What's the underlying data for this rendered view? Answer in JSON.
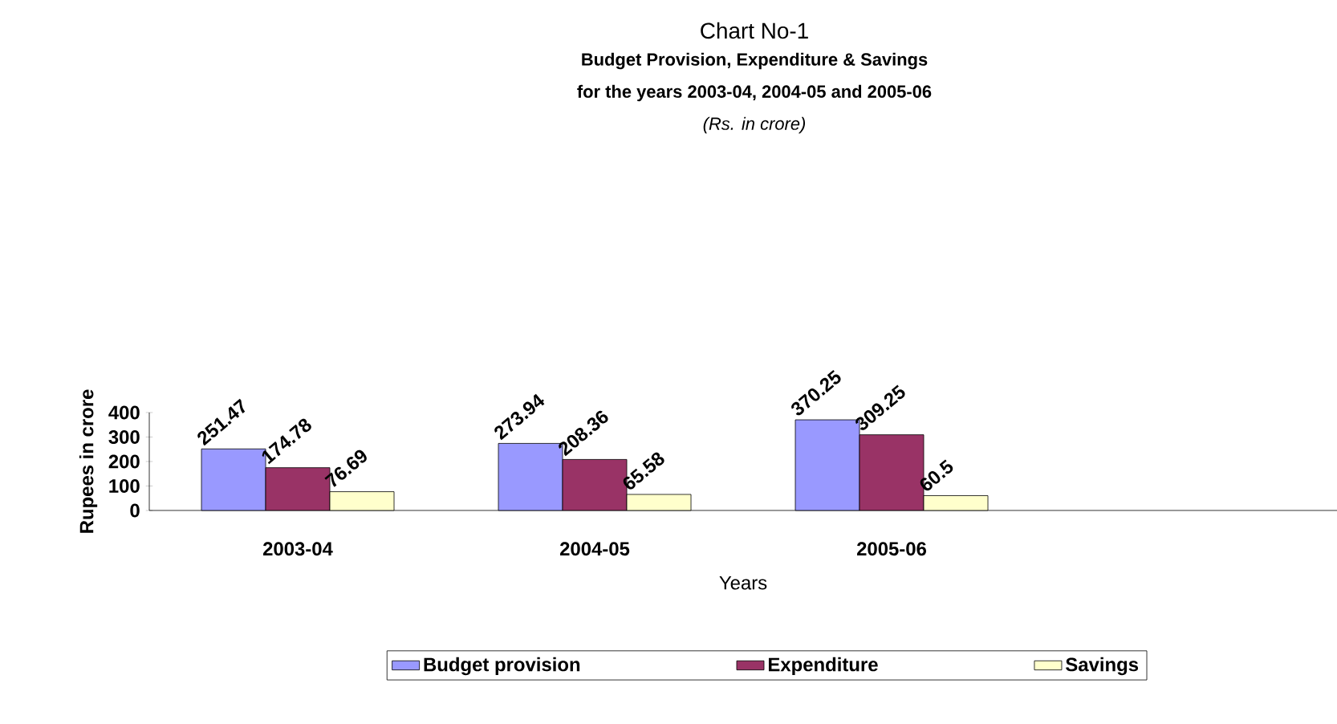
{
  "chart_data": {
    "type": "bar",
    "title": "Chart No-1",
    "subtitle": "Budget Provision, Expenditure & Savings",
    "annotations": [
      "for the years 2003-04, 2004-05 and 2005-06",
      "(Rs. in crore)"
    ],
    "xlabel": "Years",
    "ylabel": "Rupees in crore",
    "categories": [
      "2003-04",
      "2004-05",
      "2005-06",
      null
    ],
    "series": [
      {
        "name": "Budget provision",
        "color": "#9999ff",
        "values": [
          251.47,
          273.94,
          370.25,
          null
        ]
      },
      {
        "name": "Expenditure",
        "color": "#993366",
        "values": [
          174.78,
          208.36,
          309.25,
          null
        ]
      },
      {
        "name": "Savings",
        "color": "#ffffcc",
        "values": [
          76.69,
          65.58,
          60.5,
          null
        ]
      }
    ],
    "ylim": [
      0,
      400
    ],
    "yticks": [
      0,
      100,
      200,
      300,
      400
    ],
    "data_labels": true,
    "legend": "bottom"
  }
}
